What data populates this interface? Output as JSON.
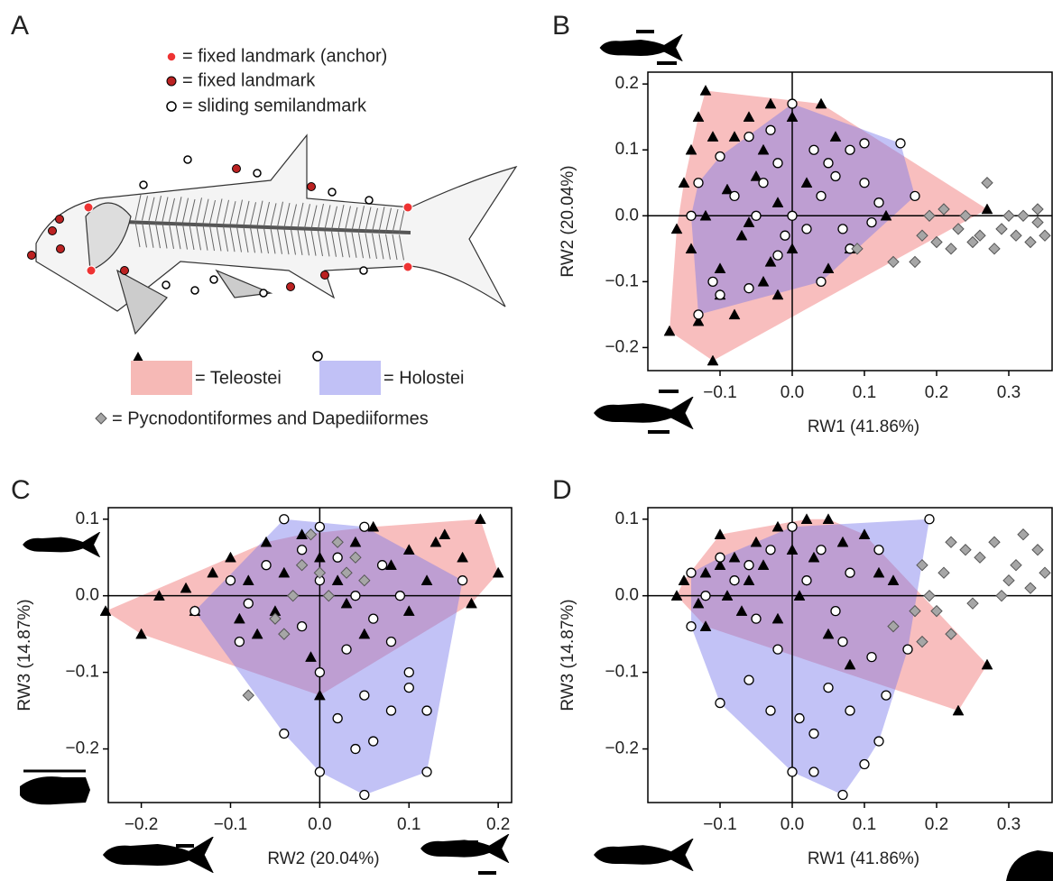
{
  "figure": {
    "panel": "A",
    "landmark_legend": [
      "= fixed landmark (anchor)",
      "= fixed landmark",
      "= sliding semilandmark"
    ],
    "group_legend": [
      "= Teleostei",
      "= Holostei",
      "= Pycnodontiformes and Dapediiformes"
    ]
  },
  "chart_data": [
    {
      "type": "scatter",
      "panel": "B",
      "x_label": "RW1 (41.86%)",
      "y_label": "RW2 (20.04%)",
      "xlim": [
        -0.2,
        0.36
      ],
      "ylim": [
        -0.235,
        0.218
      ],
      "xticks": [
        {
          "value": -0.1,
          "label": "−0.1"
        },
        {
          "value": 0,
          "label": "0.0"
        },
        {
          "value": 0.1,
          "label": "0.1"
        },
        {
          "value": 0.2,
          "label": "0.2"
        },
        {
          "value": 0.3,
          "label": "0.3"
        }
      ],
      "yticks": [
        {
          "value": -0.2,
          "label": "−0.2"
        },
        {
          "value": -0.1,
          "label": "−0.1"
        },
        {
          "value": 0,
          "label": "0.0"
        },
        {
          "value": 0.1,
          "label": "0.1"
        },
        {
          "value": 0.2,
          "label": "0.2"
        }
      ],
      "series": [
        {
          "marker": "triangle",
          "color": "#000000",
          "hull_color": "rgba(240,110,110,0.45)",
          "x": [
            -0.12,
            -0.14,
            -0.15,
            -0.16,
            -0.17,
            -0.11,
            -0.13,
            -0.1,
            -0.08,
            -0.1,
            -0.12,
            -0.09,
            -0.08,
            -0.06,
            -0.04,
            -0.03,
            0,
            0.04,
            0.06,
            -0.05,
            -0.02,
            -0.07,
            -0.04,
            -0.03,
            0,
            0.05,
            0.08,
            0.13,
            0.27,
            -0.13,
            -0.11,
            -0.02,
            0.02,
            -0.06,
            -0.14
          ],
          "values": [
            0.19,
            0.1,
            0.05,
            -0.02,
            -0.175,
            -0.22,
            -0.16,
            -0.12,
            -0.15,
            -0.08,
            0,
            0.04,
            0.12,
            0.15,
            0.1,
            0.17,
            0.15,
            0.17,
            0.12,
            0.06,
            0.02,
            -0.03,
            -0.1,
            -0.07,
            -0.05,
            -0.08,
            -0.05,
            0,
            0.01,
            0.15,
            0.12,
            -0.12,
            0.05,
            -0.01,
            -0.05
          ]
        },
        {
          "marker": "circle",
          "color": "#ffffff",
          "hull_color": "rgba(120,120,235,0.45)",
          "x": [
            0,
            0.1,
            0.15,
            0.17,
            0.08,
            0.04,
            -0.02,
            -0.06,
            -0.1,
            -0.13,
            -0.11,
            -0.14,
            -0.13,
            -0.1,
            -0.06,
            -0.04,
            -0.02,
            0,
            0.02,
            0.04,
            0.06,
            0.08,
            0.1,
            0.12,
            0.07,
            -0.01,
            -0.05,
            -0.08,
            0.03,
            -0.03,
            0.11,
            0.05
          ],
          "values": [
            0.17,
            0.11,
            0.11,
            0.03,
            -0.05,
            -0.1,
            -0.06,
            -0.11,
            -0.12,
            -0.15,
            -0.1,
            0,
            0.05,
            0.09,
            0.12,
            0.05,
            0.08,
            0,
            -0.02,
            0.03,
            0.06,
            0.1,
            0.05,
            0.02,
            -0.02,
            -0.03,
            0,
            0.03,
            0.1,
            0.13,
            -0.01,
            0.08
          ]
        },
        {
          "marker": "diamond",
          "color": "#a6a6a6",
          "x": [
            0.18,
            0.19,
            0.2,
            0.21,
            0.22,
            0.23,
            0.24,
            0.25,
            0.26,
            0.28,
            0.29,
            0.3,
            0.31,
            0.32,
            0.33,
            0.34,
            0.35,
            0.34,
            0.27,
            0.17,
            0.09,
            0.14
          ],
          "values": [
            -0.03,
            0,
            -0.04,
            0.01,
            -0.05,
            -0.02,
            0,
            -0.04,
            -0.03,
            -0.05,
            -0.02,
            0,
            -0.03,
            0,
            -0.04,
            -0.01,
            -0.03,
            0.01,
            0.05,
            -0.07,
            -0.05,
            -0.07
          ]
        }
      ]
    },
    {
      "type": "scatter",
      "panel": "C",
      "x_label": "RW2 (20.04%)",
      "y_label": "RW3 (14.87%)",
      "xlim": [
        -0.237,
        0.215
      ],
      "ylim": [
        -0.27,
        0.115
      ],
      "xticks": [
        {
          "value": -0.2,
          "label": "−0.2"
        },
        {
          "value": -0.1,
          "label": "−0.1"
        },
        {
          "value": 0,
          "label": "0.0"
        },
        {
          "value": 0.1,
          "label": "0.1"
        },
        {
          "value": 0.2,
          "label": "0.2"
        }
      ],
      "yticks": [
        {
          "value": -0.2,
          "label": "−0.2"
        },
        {
          "value": -0.1,
          "label": "−0.1"
        },
        {
          "value": 0,
          "label": "0.0"
        },
        {
          "value": 0.1,
          "label": "0.1"
        }
      ],
      "series": [
        {
          "marker": "triangle",
          "color": "#000000",
          "hull_color": "rgba(240,110,110,0.45)",
          "x": [
            -0.24,
            -0.2,
            -0.18,
            -0.15,
            -0.12,
            -0.14,
            -0.1,
            -0.08,
            -0.06,
            -0.04,
            -0.02,
            0,
            0.02,
            0.04,
            0.06,
            0.08,
            0.1,
            0.12,
            0.14,
            0.16,
            0.18,
            0.2,
            0.17,
            0.1,
            0.05,
            0,
            -0.01,
            -0.05,
            -0.09,
            0.03,
            -0.07,
            0.13
          ],
          "values": [
            -0.02,
            -0.05,
            0,
            0.01,
            0.03,
            -0.02,
            0.05,
            0.02,
            0.07,
            0.03,
            0.08,
            0.05,
            0.02,
            0.07,
            0.09,
            0.04,
            0.06,
            0.02,
            0.08,
            0.05,
            0.1,
            0.03,
            -0.01,
            -0.02,
            -0.05,
            -0.13,
            -0.08,
            -0.02,
            -0.03,
            -0.01,
            -0.05,
            0.07
          ]
        },
        {
          "marker": "circle",
          "color": "#ffffff",
          "hull_color": "rgba(120,120,235,0.45)",
          "x": [
            -0.14,
            -0.1,
            -0.04,
            0,
            0.05,
            0.16,
            0.12,
            0.05,
            0,
            -0.04,
            -0.09,
            -0.06,
            -0.02,
            0,
            0.02,
            0.04,
            0.06,
            0.08,
            0.1,
            0.08,
            0.06,
            0.04,
            0.02,
            0,
            -0.02,
            0.03,
            0.1,
            0.12,
            -0.08,
            0.07,
            0.09,
            0.05
          ],
          "values": [
            -0.02,
            0.02,
            0.1,
            0.09,
            0.09,
            0.02,
            -0.23,
            -0.26,
            -0.23,
            -0.18,
            -0.06,
            0.04,
            0.06,
            0.02,
            0.05,
            0,
            -0.03,
            -0.06,
            -0.12,
            -0.15,
            -0.19,
            -0.2,
            -0.16,
            -0.1,
            -0.04,
            -0.07,
            -0.1,
            -0.15,
            -0.01,
            0.04,
            0,
            -0.13
          ]
        },
        {
          "marker": "diamond",
          "color": "#a6a6a6",
          "x": [
            -0.08,
            -0.05,
            -0.03,
            0,
            0.02,
            0.04,
            -0.01,
            0.03,
            -0.04,
            0.01,
            0.05,
            -0.02
          ],
          "values": [
            -0.13,
            -0.03,
            0,
            0.03,
            0.07,
            0.05,
            0.08,
            0.03,
            -0.05,
            0,
            0.02,
            0.04
          ]
        }
      ]
    },
    {
      "type": "scatter",
      "panel": "D",
      "x_label": "RW1 (41.86%)",
      "y_label": "RW3 (14.87%)",
      "xlim": [
        -0.2,
        0.36
      ],
      "ylim": [
        -0.27,
        0.115
      ],
      "xticks": [
        {
          "value": -0.1,
          "label": "−0.1"
        },
        {
          "value": 0,
          "label": "0.0"
        },
        {
          "value": 0.1,
          "label": "0.1"
        },
        {
          "value": 0.2,
          "label": "0.2"
        },
        {
          "value": 0.3,
          "label": "0.3"
        }
      ],
      "yticks": [
        {
          "value": -0.2,
          "label": "−0.2"
        },
        {
          "value": -0.1,
          "label": "−0.1"
        },
        {
          "value": 0,
          "label": "0.0"
        },
        {
          "value": 0.1,
          "label": "0.1"
        }
      ],
      "series": [
        {
          "marker": "triangle",
          "color": "#000000",
          "hull_color": "rgba(240,110,110,0.45)",
          "x": [
            -0.16,
            -0.15,
            -0.13,
            -0.12,
            -0.1,
            -0.09,
            -0.08,
            -0.06,
            -0.05,
            -0.04,
            -0.02,
            0,
            0.02,
            0.05,
            0.03,
            0.07,
            0.1,
            0.12,
            0.14,
            0.27,
            0.23,
            0.08,
            0.05,
            -0.02,
            -0.07,
            -0.12,
            0.01,
            -0.1
          ],
          "values": [
            0,
            0.02,
            -0.01,
            0.03,
            0.08,
            0,
            0.05,
            0.02,
            0.07,
            0.04,
            0.09,
            0.06,
            0.1,
            0.1,
            0.05,
            0.07,
            0.08,
            0.03,
            0.02,
            -0.09,
            -0.15,
            -0.09,
            -0.05,
            -0.03,
            -0.02,
            -0.04,
            0,
            0.04
          ]
        },
        {
          "marker": "circle",
          "color": "#ffffff",
          "hull_color": "rgba(120,120,235,0.45)",
          "x": [
            -0.14,
            -0.12,
            -0.14,
            -0.1,
            -0.06,
            -0.03,
            0,
            0.03,
            0.07,
            0.1,
            0.12,
            0.16,
            0.19,
            0.12,
            0.08,
            0.06,
            0.04,
            0,
            -0.03,
            -0.06,
            -0.08,
            -0.05,
            -0.02,
            0.01,
            0.05,
            0.08,
            0.07,
            0.02,
            -0.1,
            0.11,
            0.13,
            0.03
          ],
          "values": [
            0.03,
            0,
            -0.04,
            -0.14,
            -0.11,
            -0.15,
            -0.23,
            -0.23,
            -0.26,
            -0.22,
            -0.19,
            -0.07,
            0.1,
            0.06,
            0.03,
            -0.02,
            0.06,
            0.09,
            0.06,
            0.04,
            0.02,
            -0.03,
            -0.07,
            -0.16,
            -0.12,
            -0.15,
            -0.06,
            0.02,
            0.05,
            -0.08,
            -0.13,
            -0.18
          ]
        },
        {
          "marker": "diamond",
          "color": "#a6a6a6",
          "x": [
            0.18,
            0.19,
            0.2,
            0.21,
            0.22,
            0.24,
            0.25,
            0.26,
            0.28,
            0.3,
            0.31,
            0.32,
            0.33,
            0.34,
            0.35,
            0.29,
            0.17,
            0.18,
            0.14,
            0.22
          ],
          "values": [
            0.04,
            0,
            -0.02,
            0.03,
            0.07,
            0.06,
            -0.01,
            0.05,
            0.07,
            0.02,
            0.04,
            0.08,
            0.01,
            0.06,
            0.03,
            0,
            -0.02,
            -0.06,
            -0.04,
            -0.05
          ]
        }
      ]
    }
  ]
}
